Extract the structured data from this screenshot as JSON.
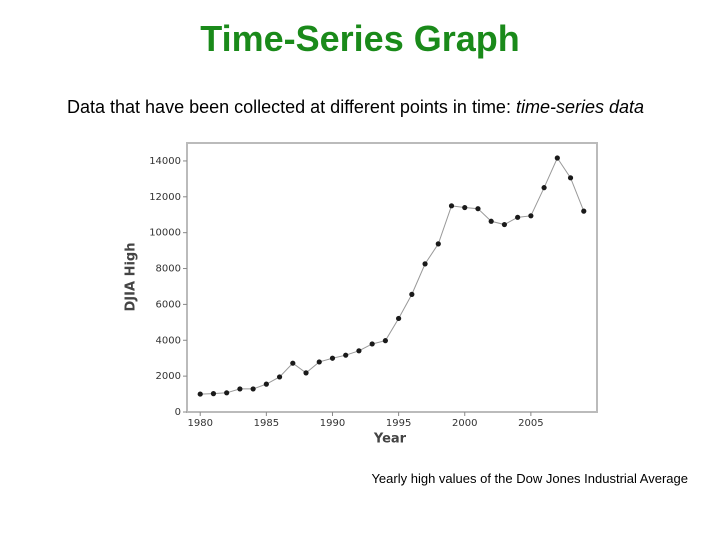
{
  "slide": {
    "title": "Time-Series Graph",
    "intro": "Data that have been collected at different points in time: ",
    "intro_italic": "time-series data",
    "caption": "Yearly high values of the Dow Jones Industrial Average"
  },
  "chart_data": {
    "type": "line",
    "x_label": "Year",
    "y_label": "DJIA High",
    "x": [
      1980,
      1981,
      1982,
      1983,
      1984,
      1985,
      1986,
      1987,
      1988,
      1989,
      1990,
      1991,
      1992,
      1993,
      1994,
      1995,
      1996,
      1997,
      1998,
      1999,
      2000,
      2001,
      2002,
      2003,
      2004,
      2005,
      2006,
      2007,
      2008,
      2009
    ],
    "series": [
      {
        "name": "DJIA High",
        "color": "#999999",
        "marker_color": "#1a1a1a",
        "values": [
          1000,
          1024,
          1070,
          1287,
          1287,
          1553,
          1956,
          2722,
          2183,
          2791,
          2999,
          3168,
          3413,
          3794,
          3978,
          5216,
          6560,
          8259,
          9374,
          11497,
          11400,
          11337,
          10635,
          10453,
          10855,
          10940,
          12510,
          14164,
          13058,
          11200
        ]
      }
    ],
    "xlim": [
      1979,
      2010
    ],
    "xticks": [
      1980,
      1985,
      1990,
      1995,
      2000,
      2005
    ],
    "ylim": [
      0,
      15000
    ],
    "yticks": [
      0,
      2000,
      4000,
      6000,
      8000,
      10000,
      12000,
      14000
    ]
  }
}
